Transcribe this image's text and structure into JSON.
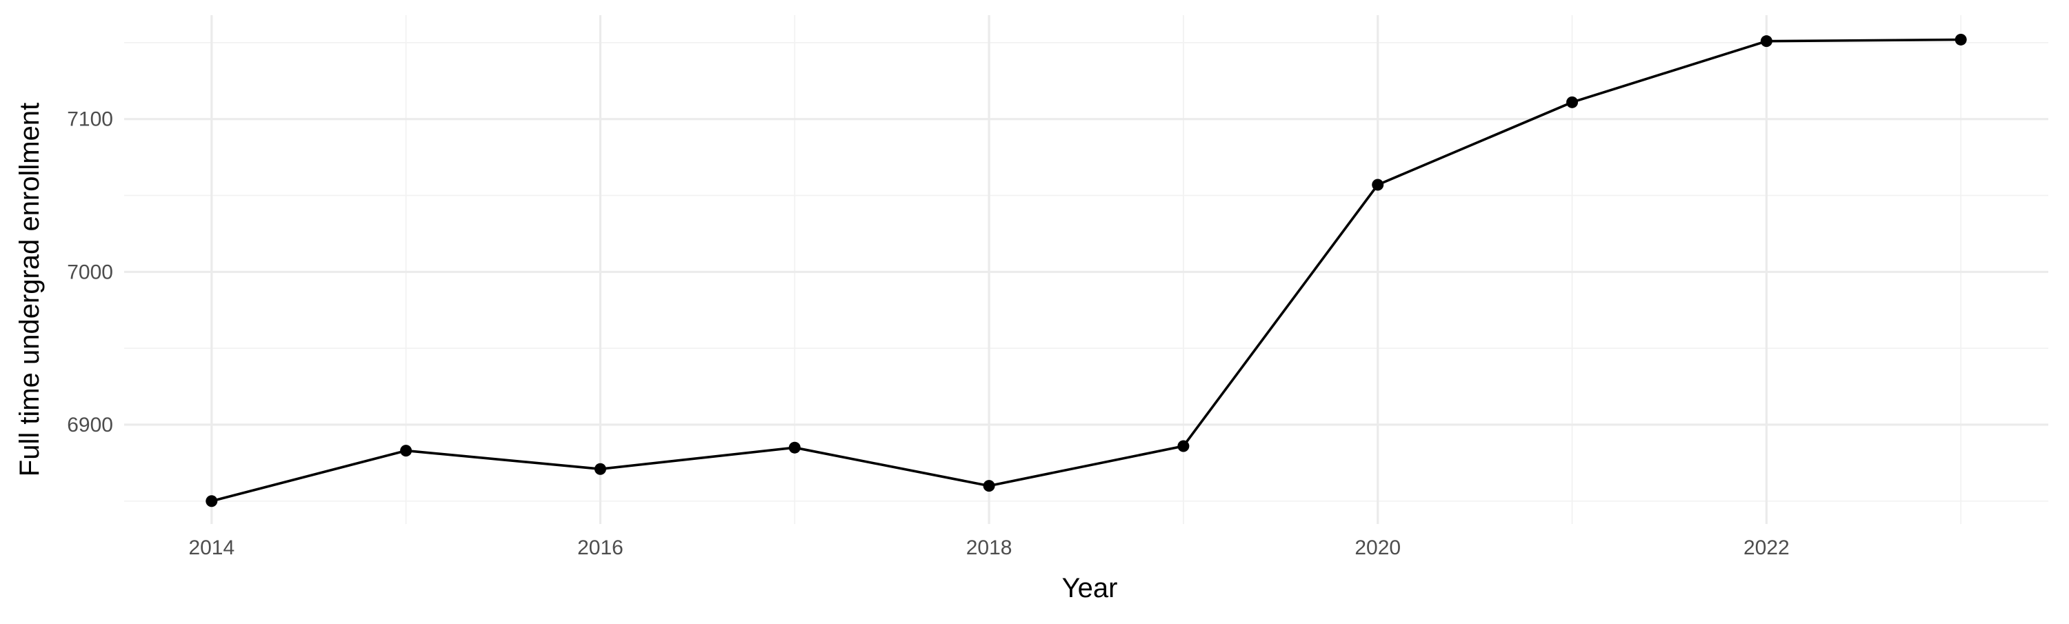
{
  "chart_data": {
    "type": "line",
    "title": "",
    "xlabel": "Year",
    "ylabel": "Full time undergrad enrollment",
    "x": [
      2014,
      2015,
      2016,
      2017,
      2018,
      2019,
      2020,
      2021,
      2022,
      2023
    ],
    "series": [
      {
        "values": [
          6850,
          6883,
          6871,
          6885,
          6860,
          6886,
          7057,
          7111,
          7151,
          7152
        ]
      }
    ],
    "x_ticks": [
      2014,
      2016,
      2018,
      2020,
      2022
    ],
    "y_ticks": [
      6900,
      7000,
      7100
    ],
    "x_tick_labels": [
      "2014",
      "2016",
      "2018",
      "2020",
      "2022"
    ],
    "y_tick_labels": [
      "6900",
      "7000",
      "7100"
    ],
    "xlim": [
      2013.55,
      2023.45
    ],
    "ylim": [
      6835,
      7168
    ],
    "grid": true,
    "line_color": "#000000",
    "point_color": "#000000",
    "grid_color": "#ebebeb",
    "background": "#ffffff"
  }
}
